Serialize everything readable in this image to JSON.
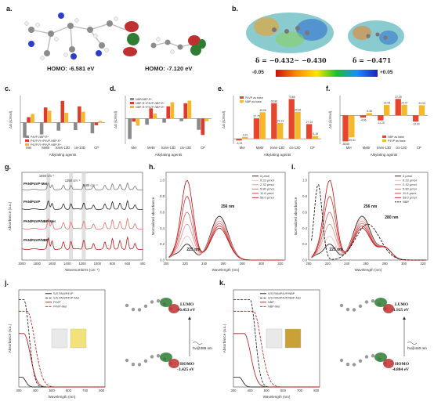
{
  "panel_labels": {
    "a": "a.",
    "b": "b.",
    "c": "c.",
    "d": "d.",
    "e": "e.",
    "f": "f.",
    "g": "g.",
    "h": "h.",
    "i": "i.",
    "j": "j.",
    "k": "k."
  },
  "panel_a": {
    "homo1": "HOMO: -6.581 eV",
    "homo2": "HOMO: -7.120 eV"
  },
  "panel_b": {
    "delta1": "δ = −0.432~ −0.430",
    "delta2": "δ = −0.471",
    "cbar_min": "-0.05",
    "cbar_max": "+0.05",
    "colors": [
      "#d01010",
      "#ff8a00",
      "#ffe400",
      "#18c030",
      "#1a8cff",
      "#2020c0"
    ]
  },
  "shared": {
    "alkylating_agents": "Alkylating agents",
    "dg_label": "ΔG (kJ/mol)",
    "absorbance": "Absorbance (a.u.)",
    "wavenumbers": "Wavenumbers (cm⁻¹)",
    "wavelength": "Wavelength (nm)",
    "norm_abs": "Normalized absorbance"
  },
  "panel_c": {
    "categories": [
      "MeI",
      "MeBr",
      "trans-13D",
      "cis-13D",
      "CP"
    ],
    "legend": [
      "P4VP-NBP-R⁺",
      "P4VP-R⁺/P4VP-NBP-R⁺",
      "P4VP-R⁺/P4VP-NBP-R⁺"
    ],
    "series": [
      {
        "color": "#8a8a8a",
        "values": [
          -28,
          -22,
          -15,
          -14,
          -20
        ]
      },
      {
        "color": "#e03a2a",
        "values": [
          10,
          28,
          40,
          30,
          -5
        ]
      },
      {
        "color": "#f5b82a",
        "values": [
          16,
          22,
          18,
          20,
          3
        ]
      }
    ]
  },
  "panel_d": {
    "categories": [
      "MeI",
      "MeBr",
      "trans-13D",
      "cis-13D",
      "CP"
    ],
    "legend": [
      "NBP/NBP-R⁺",
      "NBP-R⁺/P4VP-NBP-R⁺",
      "NBP-R⁺/P4VP-NBP-R⁺"
    ],
    "series": [
      {
        "color": "#8a8a8a",
        "values": [
          -40,
          -12,
          -8,
          -5,
          -22
        ]
      },
      {
        "color": "#e03a2a",
        "values": [
          -6,
          20,
          24,
          30,
          -32
        ]
      },
      {
        "color": "#f5b82a",
        "values": [
          -14,
          10,
          32,
          35,
          -5
        ]
      }
    ]
  },
  "panel_e": {
    "categories": [
      "MeI",
      "MeBr",
      "trans-13D",
      "cis-13D",
      "CP"
    ],
    "legend": [
      "P4VP as base",
      "NBP as base"
    ],
    "series": [
      {
        "color": "#e8452f",
        "values": [
          -3.13,
          37.75,
          65.8,
          73.65,
          27.14
        ]
      },
      {
        "color": "#f5b82a",
        "values": [
          3.21,
          49.08,
          29.13,
          49.81,
          5.16
        ]
      }
    ],
    "value_labels": [
      "-3.13",
      "3.21",
      "37.75",
      "49.08",
      "65.80",
      "29.13",
      "73.65",
      "49.81",
      "27.14",
      "5.16"
    ]
  },
  "panel_f": {
    "categories": [
      "MeI",
      "MeBr",
      "trans-13D",
      "cis-13D",
      "CP"
    ],
    "legend": [
      "NBP as base",
      "P4VP as base"
    ],
    "series": [
      {
        "color": "#e8452f",
        "values": [
          -58.66,
          -4.96,
          -11.2,
          37.35,
          -13.9
        ]
      },
      {
        "color": "#f5b82a",
        "values": [
          -49.51,
          5.38,
          23.53,
          24.07,
          23.05
        ]
      }
    ],
    "value_labels": [
      "-58.66",
      "-49.51",
      "-4.96",
      "5.38",
      "-11.20",
      "23.53",
      "37.35",
      "24.07",
      "-13.90",
      "23.05"
    ]
  },
  "panel_g": {
    "ticks": [
      "2000",
      "1800",
      "1600",
      "1400",
      "1200",
      "1000",
      "800",
      "600",
      "400"
    ],
    "annotations": [
      "1650 cm⁻¹",
      "1350 cm⁻¹",
      "1180 cm⁻¹"
    ],
    "labels": [
      "PAN/P4VP-MeI",
      "PAN/P4VP",
      "PAN/P4VP/NBP-MeI",
      "PAN/P4VP/NBP"
    ]
  },
  "panel_h": {
    "legend": [
      "0 μmol",
      "0.23 μmol",
      "2.32 μmol",
      "5.80 μmol",
      "11.6 μmol",
      "58.0 μmol"
    ],
    "xticks": [
      "200",
      "220",
      "240",
      "260",
      "280",
      "300",
      "320"
    ],
    "yticks": [
      "0.0",
      "0.2",
      "0.4",
      "0.6",
      "0.8",
      "1.0"
    ],
    "annot1": "256 nm",
    "annot2": "225 nm"
  },
  "panel_i": {
    "legend": [
      "0 μmol",
      "0.23 μmol",
      "2.32 μmol",
      "5.80 μmol",
      "11.6 μmol",
      "58.0 μmol",
      "NBP"
    ],
    "xticks": [
      "200",
      "220",
      "240",
      "260",
      "280",
      "300",
      "320"
    ],
    "yticks": [
      "0.0",
      "0.2",
      "0.4",
      "0.6",
      "0.8",
      "1.0"
    ],
    "annot1": "256 nm",
    "annot2": "280 nm",
    "annot3": "225 nm"
  },
  "panel_j": {
    "legend": [
      "S/S PAN/P4VP",
      "S/S PAN/P4VP-MeI",
      "P4VP",
      "P4VP-MeI"
    ],
    "xticks": [
      "300",
      "400",
      "500",
      "600",
      "700",
      "800"
    ],
    "lumo": "LUMO",
    "lumo_val": "+0.453 eV",
    "homo": "HOMO",
    "homo_val": "-3.425 eV",
    "hv": "hν@389 nm"
  },
  "panel_k": {
    "legend": [
      "S/S PAN/P4VP/NBP",
      "S/S PAN/P4VP/NBP-MeI",
      "NBP",
      "NBP-MeI"
    ],
    "xticks": [
      "300",
      "400",
      "500",
      "600",
      "700",
      "800"
    ],
    "lumo": "LUMO",
    "lumo_val": "-1.925 eV",
    "homo": "HOMO",
    "homo_val": "-4.804 eV",
    "hv": "hν@440 nm"
  }
}
